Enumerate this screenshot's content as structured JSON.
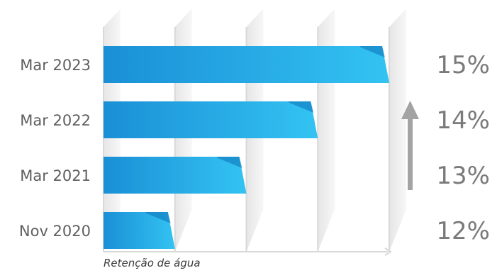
{
  "chart_data": {
    "type": "bar",
    "orientation": "horizontal",
    "categories": [
      "Mar 2023",
      "Mar 2022",
      "Mar 2021",
      "Nov 2020"
    ],
    "values": [
      15,
      14,
      13,
      12
    ],
    "value_labels": [
      "15%",
      "14%",
      "13%",
      "12%"
    ],
    "xlabel": "Retenção de água",
    "xlim": [
      11,
      15
    ],
    "grid": true,
    "trend_arrow": "up",
    "colors": {
      "bar_start": "#1a8fd6",
      "bar_end": "#33c3f2",
      "bar_fold": "#0b6fb8",
      "grid": "#d9d9d9",
      "grid_panel": "#efefef",
      "arrow": "#a3a3a3",
      "category_text": "#5f5f5f",
      "value_text": "#7a7a7a",
      "axis_text": "#3c3c3c"
    }
  }
}
